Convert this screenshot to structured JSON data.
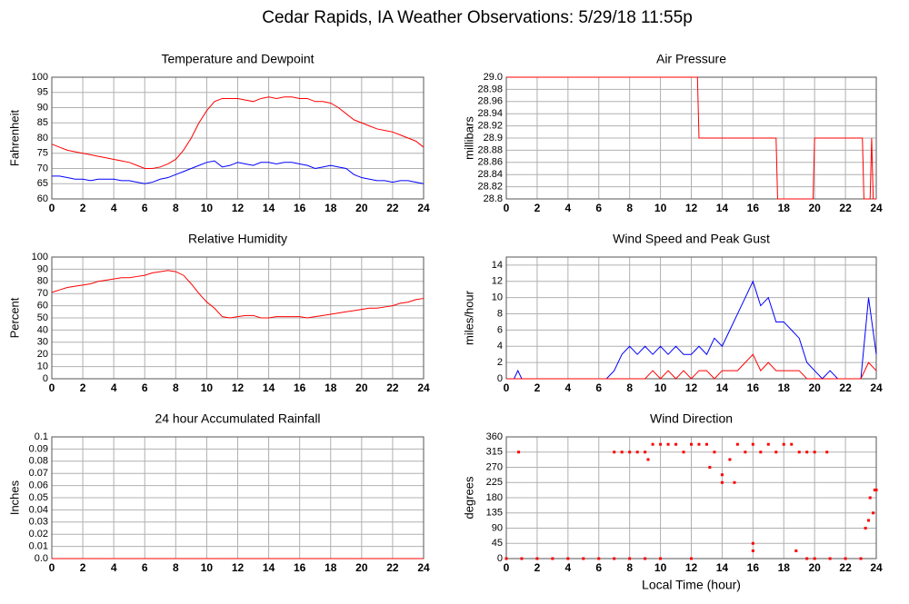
{
  "title": "Cedar Rapids, IA Weather Observations: 5/29/18 11:55p",
  "chart_data": [
    {
      "type": "line",
      "title": "Temperature and Dewpoint",
      "ylabel": "Fahrenheit",
      "x": [
        0,
        0.5,
        1,
        1.5,
        2,
        2.5,
        3,
        3.5,
        4,
        4.5,
        5,
        5.5,
        6,
        6.5,
        7,
        7.5,
        8,
        8.5,
        9,
        9.5,
        10,
        10.5,
        11,
        11.5,
        12,
        12.5,
        13,
        13.5,
        14,
        14.5,
        15,
        15.5,
        16,
        16.5,
        17,
        17.5,
        18,
        18.5,
        19,
        19.5,
        20,
        20.5,
        21,
        21.5,
        22,
        22.5,
        23,
        23.5,
        24
      ],
      "series": [
        {
          "name": "Temperature",
          "color": "#ff0000",
          "values": [
            78,
            77,
            76,
            75.5,
            75,
            74.5,
            74,
            73.5,
            73,
            72.5,
            72,
            71,
            70,
            70,
            70.5,
            71.5,
            73,
            76,
            80,
            85,
            89,
            92,
            93,
            93,
            93,
            92.5,
            92,
            93,
            93.5,
            93,
            93.5,
            93.5,
            93,
            93,
            92,
            92,
            91.5,
            90,
            88,
            86,
            85,
            84,
            83,
            82.5,
            82,
            81,
            80,
            79,
            77
          ]
        },
        {
          "name": "Dewpoint",
          "color": "#0000ff",
          "values": [
            67.5,
            67.5,
            67,
            66.5,
            66.5,
            66,
            66.5,
            66.5,
            66.5,
            66,
            66,
            65.5,
            65,
            65.5,
            66.5,
            67,
            68,
            69,
            70,
            71,
            72,
            72.5,
            70.5,
            71,
            72,
            71.5,
            71,
            72,
            72,
            71.5,
            72,
            72,
            71.5,
            71,
            70,
            70.5,
            71,
            70.5,
            70,
            68,
            67,
            66.5,
            66,
            66,
            65.5,
            66,
            66,
            65.5,
            65
          ]
        }
      ],
      "xlim": [
        0,
        24
      ],
      "xticks": [
        0,
        2,
        4,
        6,
        8,
        10,
        12,
        14,
        16,
        18,
        20,
        22,
        24
      ],
      "ylim": [
        60,
        100
      ],
      "yticks": [
        60,
        65,
        70,
        75,
        80,
        85,
        90,
        95,
        100
      ],
      "grid": true
    },
    {
      "type": "line",
      "title": "Air Pressure",
      "ylabel": "millibars",
      "x": [
        0,
        12.4,
        12.5,
        17.5,
        17.6,
        19.9,
        20,
        23.1,
        23.2,
        23.6,
        23.7,
        23.8,
        24
      ],
      "series": [
        {
          "name": "Pressure",
          "color": "#ff0000",
          "values": [
            29,
            29,
            28.9,
            28.9,
            28.8,
            28.8,
            28.9,
            28.9,
            28.8,
            28.8,
            28.9,
            28.8,
            28.8
          ]
        }
      ],
      "xlim": [
        0,
        24
      ],
      "xticks": [
        0,
        2,
        4,
        6,
        8,
        10,
        12,
        14,
        16,
        18,
        20,
        22,
        24
      ],
      "ylim": [
        28.8,
        29
      ],
      "yticks": [
        28.8,
        28.82,
        28.84,
        28.86,
        28.88,
        28.9,
        28.92,
        28.94,
        28.96,
        28.98,
        {
          "value": 29,
          "label": "29.0"
        }
      ],
      "grid": true
    },
    {
      "type": "line",
      "title": "Relative Humidity",
      "ylabel": "Percent",
      "x": [
        0,
        0.5,
        1,
        1.5,
        2,
        2.5,
        3,
        3.5,
        4,
        4.5,
        5,
        5.5,
        6,
        6.5,
        7,
        7.5,
        8,
        8.5,
        9,
        9.5,
        10,
        10.5,
        11,
        11.5,
        12,
        12.5,
        13,
        13.5,
        14,
        14.5,
        15,
        15.5,
        16,
        16.5,
        17,
        17.5,
        18,
        18.5,
        19,
        19.5,
        20,
        20.5,
        21,
        21.5,
        22,
        22.5,
        23,
        23.5,
        24
      ],
      "series": [
        {
          "name": "Relative Humidity",
          "color": "#ff0000",
          "values": [
            71,
            73,
            75,
            76,
            77,
            78,
            80,
            81,
            82,
            83,
            83,
            84,
            85,
            87,
            88,
            89,
            88,
            85,
            78,
            70,
            63,
            58,
            51,
            50,
            51,
            52,
            52,
            50,
            50,
            51,
            51,
            51,
            51,
            50,
            51,
            52,
            53,
            54,
            55,
            56,
            57,
            58,
            58,
            59,
            60,
            62,
            63,
            65,
            66
          ]
        }
      ],
      "xlim": [
        0,
        24
      ],
      "xticks": [
        0,
        2,
        4,
        6,
        8,
        10,
        12,
        14,
        16,
        18,
        20,
        22,
        24
      ],
      "ylim": [
        0,
        100
      ],
      "yticks": [
        0,
        10,
        20,
        30,
        40,
        50,
        60,
        70,
        80,
        90,
        100
      ],
      "grid": true
    },
    {
      "type": "line",
      "title": "Wind Speed and Peak Gust",
      "ylabel": "miles/hour",
      "x": [
        0,
        0.5,
        0.75,
        1,
        1.5,
        2,
        2.5,
        3,
        3.5,
        4,
        4.5,
        5,
        5.5,
        6,
        6.5,
        7,
        7.5,
        8,
        8.5,
        9,
        9.5,
        10,
        10.5,
        11,
        11.5,
        12,
        12.5,
        13,
        13.5,
        14,
        14.5,
        15,
        15.5,
        16,
        16.5,
        17,
        17.5,
        18,
        18.5,
        19,
        19.5,
        20,
        20.5,
        21,
        21.5,
        22,
        22.5,
        23,
        23.5,
        24
      ],
      "series": [
        {
          "name": "Wind Speed",
          "color": "#0000ff",
          "values": [
            0,
            0,
            1,
            0,
            0,
            0,
            0,
            0,
            0,
            0,
            0,
            0,
            0,
            0,
            0,
            1,
            3,
            4,
            3,
            4,
            3,
            4,
            3,
            4,
            3,
            3,
            4,
            3,
            5,
            4,
            6,
            8,
            10,
            12,
            9,
            10,
            7,
            7,
            6,
            5,
            2,
            1,
            0,
            1,
            0,
            0,
            0,
            0,
            10,
            3
          ]
        },
        {
          "name": "Peak Gust",
          "color": "#ff0000",
          "values": [
            0,
            0,
            0,
            0,
            0,
            0,
            0,
            0,
            0,
            0,
            0,
            0,
            0,
            0,
            0,
            0,
            0,
            0,
            0,
            0,
            1,
            0,
            1,
            0,
            1,
            0,
            1,
            1,
            0,
            1,
            1,
            1,
            2,
            3,
            1,
            2,
            1,
            1,
            1,
            1,
            0,
            0,
            0,
            0,
            0,
            0,
            0,
            0,
            2,
            1
          ]
        }
      ],
      "xlim": [
        0,
        24
      ],
      "xticks": [
        0,
        2,
        4,
        6,
        8,
        10,
        12,
        14,
        16,
        18,
        20,
        22,
        24
      ],
      "ylim": [
        0,
        15
      ],
      "yticks": [
        0,
        2,
        4,
        6,
        8,
        10,
        12,
        14
      ],
      "grid": true
    },
    {
      "type": "line",
      "title": "24 hour Accumulated Rainfall",
      "ylabel": "Inches",
      "x": [
        0,
        24
      ],
      "series": [
        {
          "name": "Rainfall",
          "color": "#ff0000",
          "values": [
            0,
            0
          ]
        }
      ],
      "xlim": [
        0,
        24
      ],
      "xticks": [
        0,
        2,
        4,
        6,
        8,
        10,
        12,
        14,
        16,
        18,
        20,
        22,
        24
      ],
      "ylim": [
        0,
        0.1
      ],
      "yticks": [
        {
          "value": 0,
          "label": "0.0"
        },
        0.01,
        0.02,
        0.03,
        0.04,
        0.05,
        0.06,
        0.07,
        0.08,
        0.09,
        0.1
      ],
      "grid": true
    },
    {
      "type": "scatter",
      "title": "Wind Direction",
      "ylabel": "degrees",
      "xlabel": "Local Time (hour)",
      "x": [
        0.8,
        7,
        7.5,
        8,
        8.5,
        9,
        9.2,
        9.5,
        10,
        10.5,
        11,
        11.5,
        12,
        12.5,
        13,
        13.2,
        13.5,
        14,
        14,
        14.5,
        14.8,
        15,
        15.5,
        16,
        16,
        16,
        16.5,
        17,
        17.5,
        18,
        18.5,
        18.8,
        19,
        19.5,
        20,
        20.8,
        23.3,
        23.5,
        23.6,
        23.8,
        23.9,
        24,
        0,
        1,
        2,
        3,
        4,
        5,
        6,
        7,
        8,
        9,
        10,
        12,
        19.5,
        20,
        21,
        22,
        23
      ],
      "series": [
        {
          "name": "Wind Direction",
          "color": "#ff0000",
          "values": [
            315,
            315,
            315,
            315,
            315,
            315,
            293,
            338,
            338,
            338,
            338,
            315,
            338,
            338,
            338,
            270,
            315,
            225,
            248,
            293,
            225,
            338,
            315,
            338,
            45,
            23,
            315,
            338,
            315,
            338,
            338,
            23,
            315,
            315,
            315,
            315,
            90,
            113,
            180,
            135,
            203,
            203,
            0,
            0,
            0,
            0,
            0,
            0,
            0,
            0,
            0,
            0,
            0,
            0,
            0,
            0,
            0,
            0,
            0
          ]
        }
      ],
      "xlim": [
        0,
        24
      ],
      "xticks": [
        0,
        2,
        4,
        6,
        8,
        10,
        12,
        14,
        16,
        18,
        20,
        22,
        24
      ],
      "ylim": [
        0,
        360
      ],
      "yticks": [
        0,
        45,
        90,
        135,
        180,
        225,
        270,
        315,
        360
      ],
      "grid": true
    }
  ]
}
